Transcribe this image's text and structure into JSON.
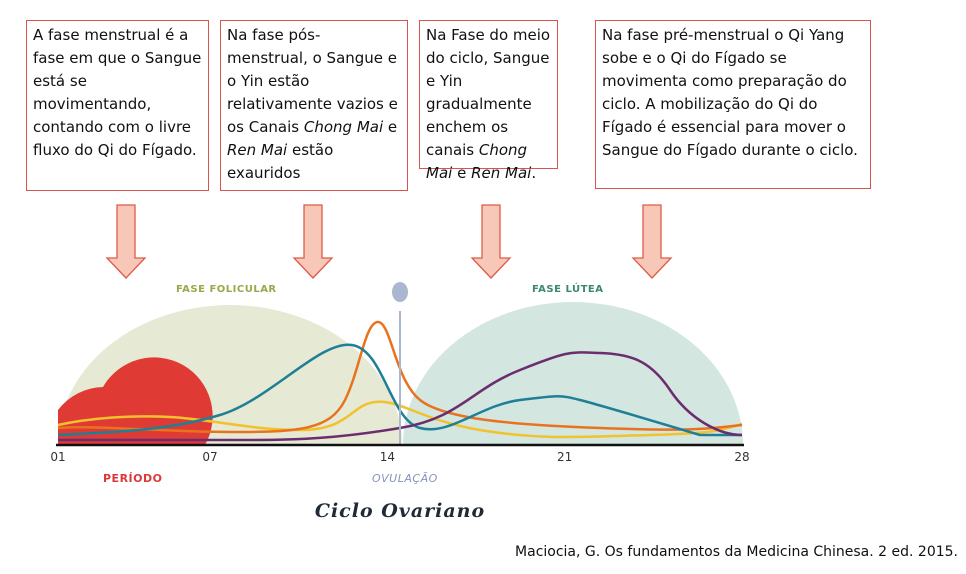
{
  "boxes": [
    {
      "parts": [
        {
          "t": "A fase menstrual é a fase em que o Sangue está se movimentando, contando com o livre fluxo do Qi do Fígado."
        }
      ]
    },
    {
      "parts": [
        {
          "t": "Na fase pós-menstrual, o Sangue e o Yin estão relativamente vazios e os Canais "
        },
        {
          "t": "Chong Mai",
          "i": true
        },
        {
          "t": " e "
        },
        {
          "t": "Ren Mai",
          "i": true
        },
        {
          "t": " estão exauridos"
        }
      ]
    },
    {
      "parts": [
        {
          "t": "Na Fase do meio do ciclo, Sangue e Yin gradualmente enchem os canais "
        },
        {
          "t": "Chong Mai",
          "i": true
        },
        {
          "t": " e "
        },
        {
          "t": "Ren Mai",
          "i": true
        },
        {
          "t": "."
        }
      ]
    },
    {
      "parts": [
        {
          "t": "Na fase pré-menstrual o Qi Yang sobe e o Qi do Fígado se movimenta como preparação do ciclo. A mobilização do Qi do Fígado é essencial para mover o Sangue do Fígado durante o ciclo."
        }
      ]
    }
  ],
  "chart": {
    "phase_follicular": "FASE FOLICULAR",
    "phase_luteal": "FASE LÚTEA",
    "period_label": "PERÍODO",
    "ovulation_label": "OVULAÇÃO",
    "ticks": [
      "01",
      "07",
      "14",
      "21",
      "28"
    ],
    "tick_days": [
      1,
      7,
      14,
      21,
      28
    ],
    "title": "Ciclo Ovariano",
    "colors": {
      "follicular": "#e6e9d3",
      "luteal": "#d3e6df",
      "period": "#e03a35",
      "ovulation": "#a9b7cf",
      "teal": "#1f7f96",
      "orange": "#e8731f",
      "yellow": "#f2c12e",
      "purple": "#6b2d6e",
      "follicular_text": "#9aa84a",
      "luteal_text": "#3a8a6a",
      "period_text": "#d9393a",
      "ovulation_text": "#8296b8",
      "arrow_fill": "#f7c8b8",
      "arrow_stroke": "#e05a48"
    }
  },
  "citation": "Maciocia, G. Os fundamentos da Medicina Chinesa. 2 ed. 2015."
}
